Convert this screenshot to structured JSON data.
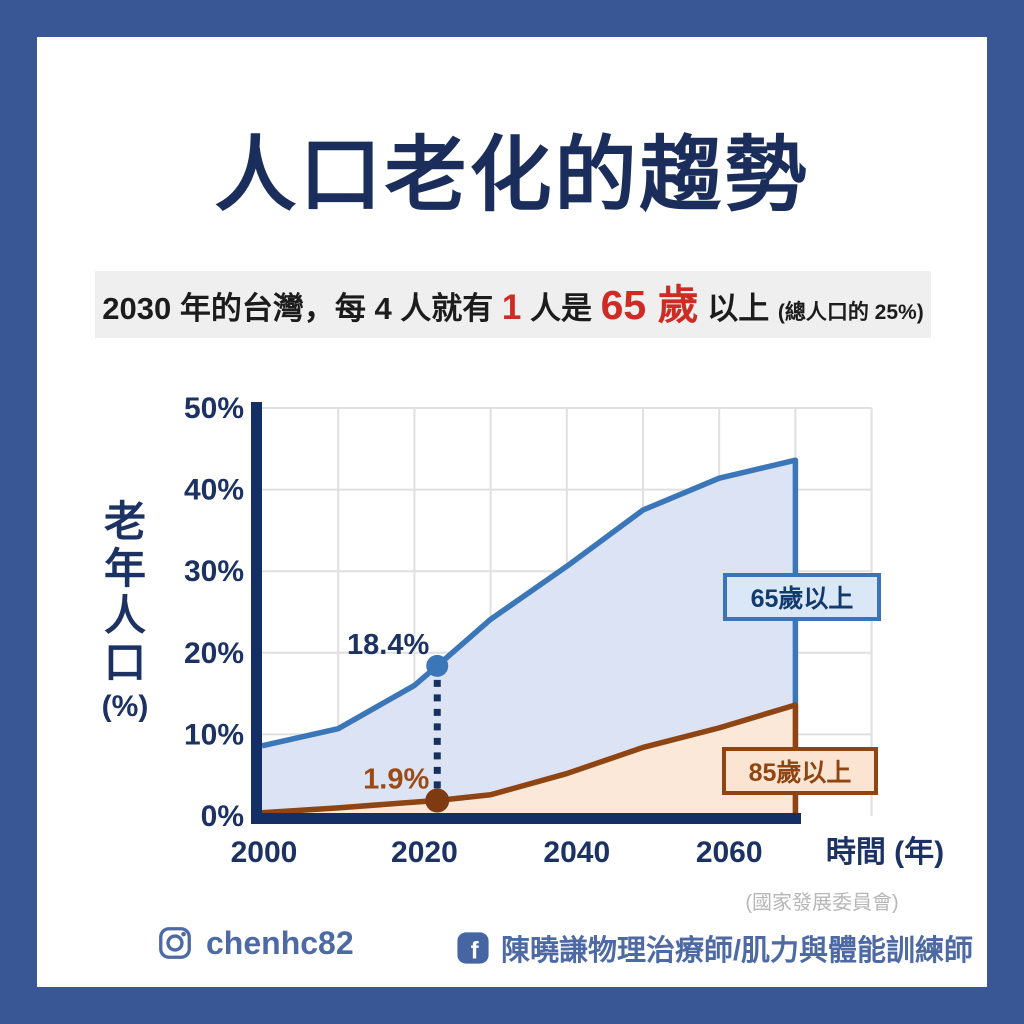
{
  "title": "人口老化的趨勢",
  "subtitle": {
    "segments": [
      {
        "text": "2030 年的台灣，每 4 人就有 ",
        "style": "dark"
      },
      {
        "text": "1",
        "style": "red"
      },
      {
        "text": " 人是 ",
        "style": "dark"
      },
      {
        "text": "65 歲",
        "style": "red-large"
      },
      {
        "text": " 以上 ",
        "style": "dark"
      },
      {
        "text": "(總人口的 25%)",
        "style": "dark-small"
      }
    ]
  },
  "chart_data": {
    "type": "area",
    "title": "",
    "xlabel": "時間 (年)",
    "ylabel": "老年人口",
    "ylabel_unit": "(%)",
    "xlim": [
      2000,
      2080
    ],
    "ylim": [
      0,
      50
    ],
    "grid": true,
    "x_tick_values": [
      2000,
      2020,
      2040,
      2060
    ],
    "x_tick_labels": [
      "2000",
      "2020",
      "2040",
      "2060"
    ],
    "y_tick_values": [
      0,
      10,
      20,
      30,
      40,
      50
    ],
    "y_tick_labels": [
      "0%",
      "10%",
      "20%",
      "30%",
      "40%",
      "50%"
    ],
    "series": [
      {
        "name": "65歲以上",
        "color": "#3B77B8",
        "fill": "#DCE3F4",
        "x": [
          2000,
          2010,
          2020,
          2023,
          2030,
          2040,
          2050,
          2060,
          2070
        ],
        "values": [
          8.6,
          10.7,
          16.0,
          18.4,
          24.1,
          30.6,
          37.5,
          41.4,
          43.6
        ]
      },
      {
        "name": "85歲以上",
        "color": "#8F4513",
        "fill": "#FBE8D8",
        "x": [
          2000,
          2010,
          2020,
          2023,
          2030,
          2040,
          2050,
          2060,
          2070
        ],
        "values": [
          0.4,
          1.0,
          1.7,
          1.9,
          2.6,
          5.2,
          8.4,
          10.8,
          13.6
        ]
      }
    ],
    "marker": {
      "year": 2023,
      "line_color": "#17315E",
      "points": [
        {
          "series": 0,
          "value": 18.4,
          "color": "#3B77B8",
          "r": 11
        },
        {
          "series": 1,
          "value": 1.9,
          "color": "#7E3A10",
          "r": 12
        }
      ]
    },
    "annotations": [
      {
        "text": "18.4%",
        "year": 2023,
        "value": 18.4,
        "color": "#1B3263"
      },
      {
        "text": "1.9%",
        "year": 2023,
        "value": 1.9,
        "color": "#9A4A12"
      }
    ]
  },
  "legend": [
    {
      "label": "65歲以上",
      "border": "#3875BC",
      "bg": "#D9E7F7",
      "text_color": "#123A6E"
    },
    {
      "label": "85歲以上",
      "border": "#8F4513",
      "bg": "#FBE5D2",
      "text_color": "#8F4513"
    }
  ],
  "source": "(國家發展委員會)",
  "footer": {
    "instagram_handle": "chenhc82",
    "facebook_name": "陳曉謙物理治療師/肌力與體能訓練師"
  },
  "colors": {
    "frame": "#3A5795",
    "card": "#FFFFFF",
    "title": "#1B2D5B",
    "axis": "#142F66",
    "tick_labels": "#1B3263",
    "gridline": "#E0E0E0",
    "subtitle_bg": "#EFEFEF",
    "subtitle_text": "#1C1C1C",
    "subtitle_red": "#CE2B24",
    "footer_blue": "#4E6AA4",
    "source_gray": "#B7B7B7"
  }
}
